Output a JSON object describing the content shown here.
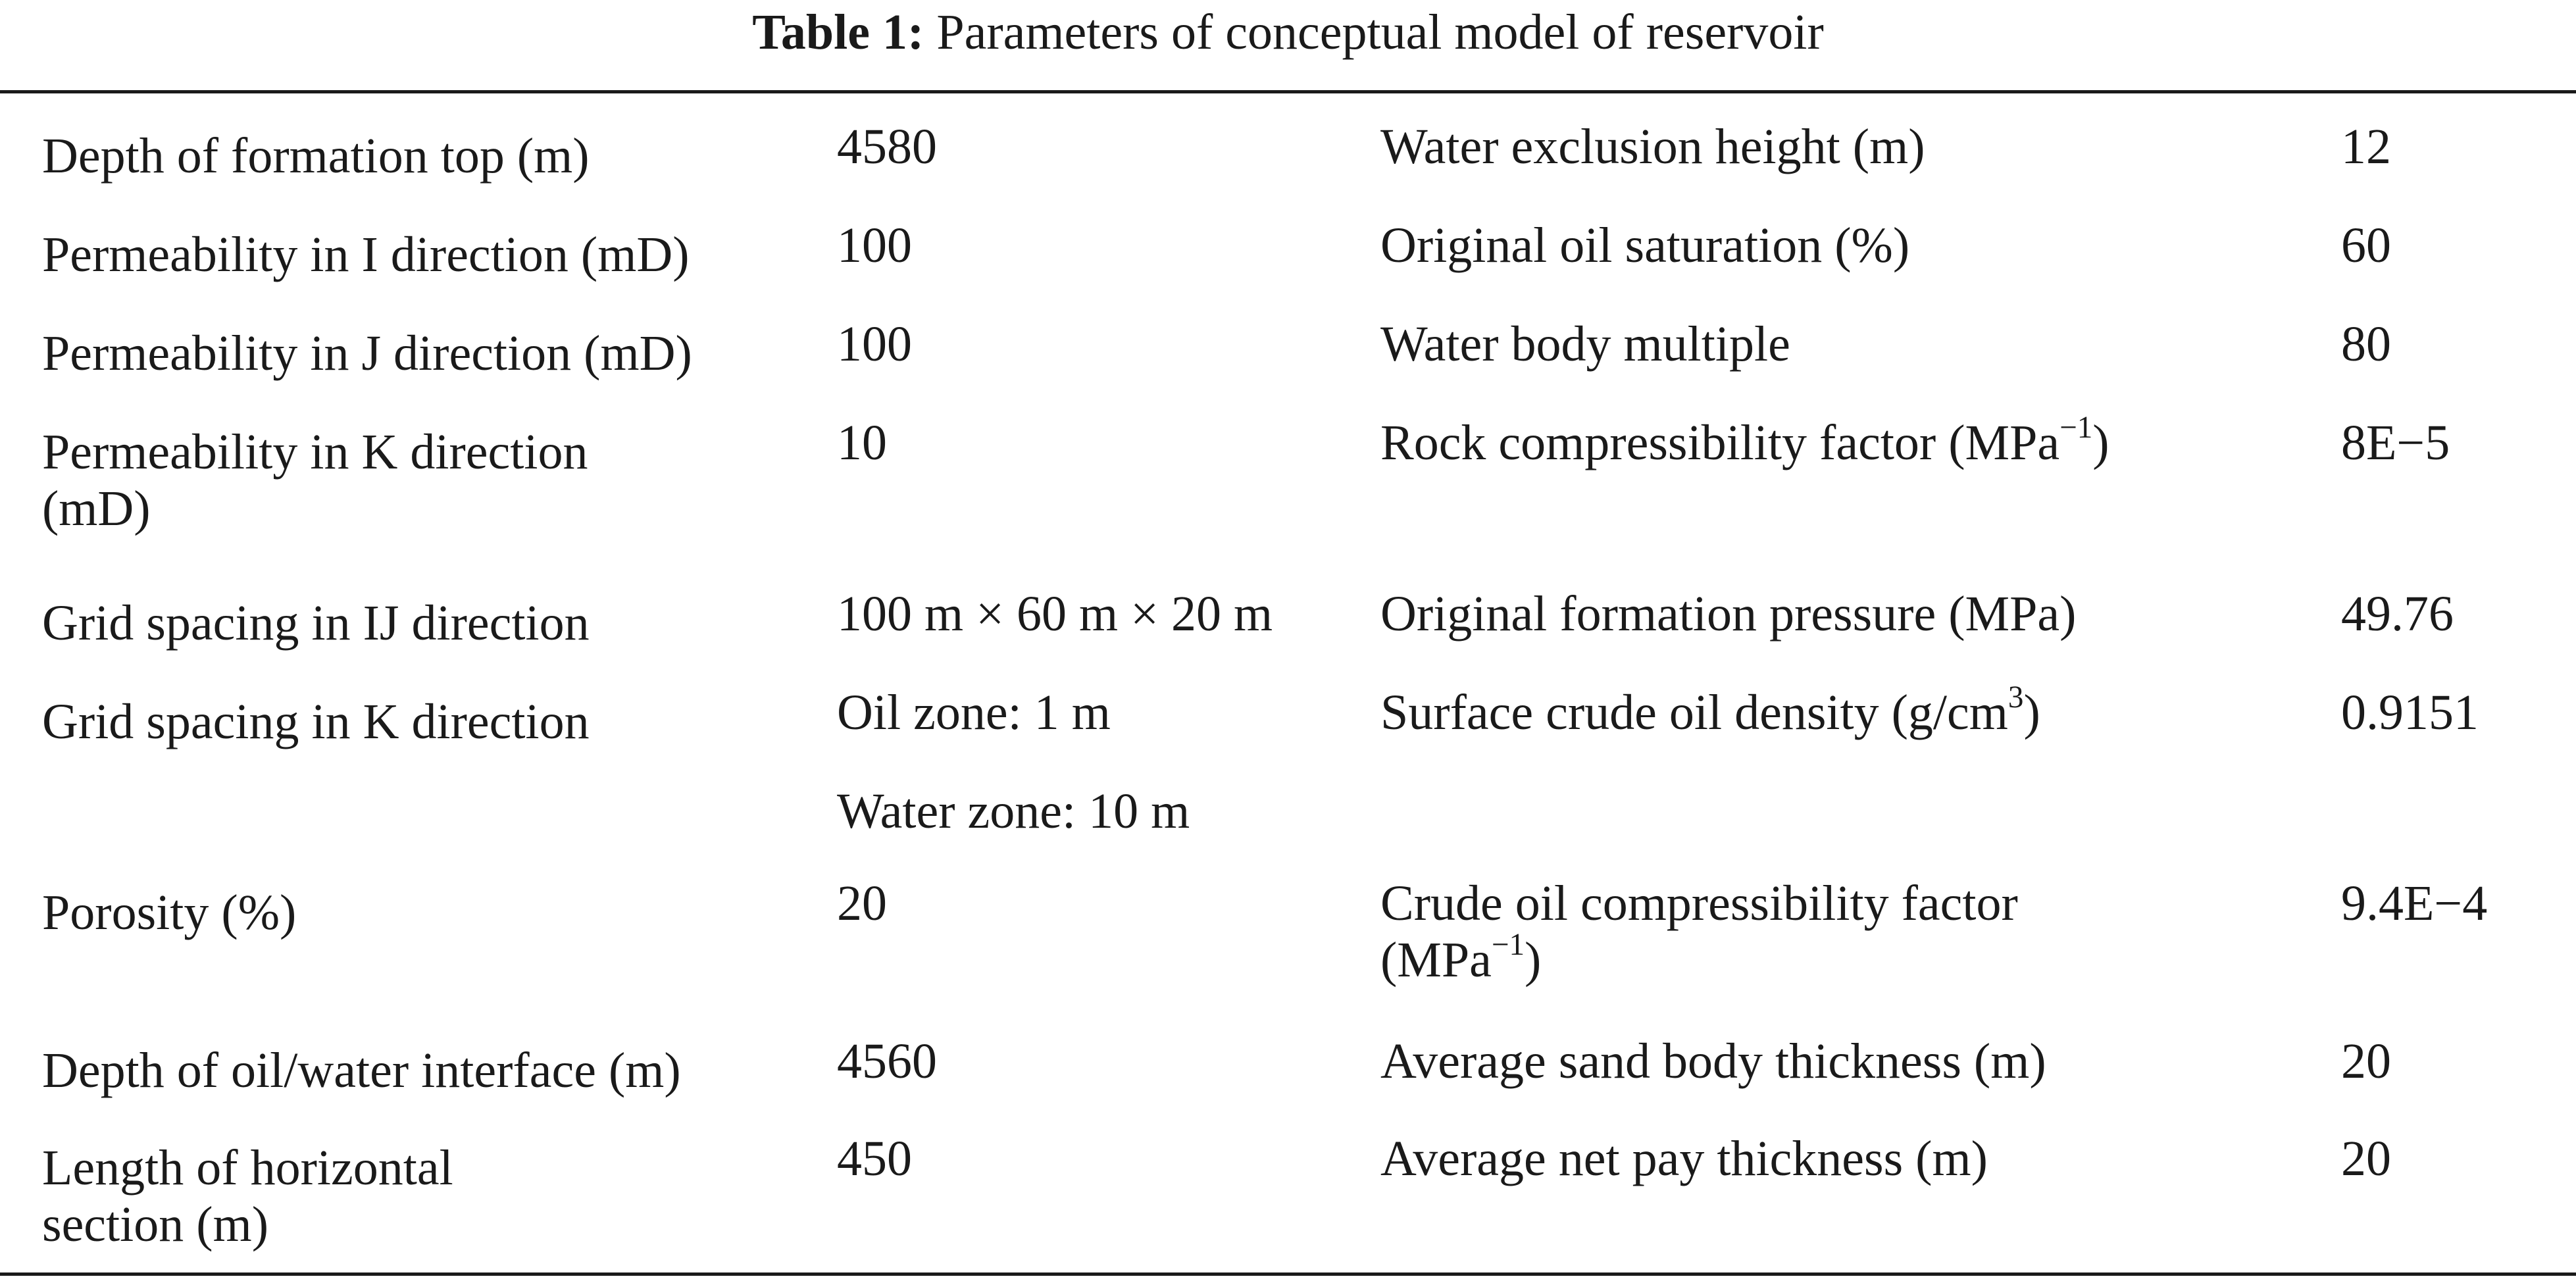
{
  "caption": {
    "label": "Table 1:",
    "title": "Parameters of conceptual model of reservoir"
  },
  "rows": [
    {
      "c1": [
        "Depth of formation top (m)"
      ],
      "c2": [
        "4580"
      ],
      "c3": [
        "Water exclusion height (m)"
      ],
      "c4": [
        "12"
      ]
    },
    {
      "c1": [
        "Permeability in I direction (mD)"
      ],
      "c2": [
        "100"
      ],
      "c3": [
        "Original oil saturation (%)"
      ],
      "c4": [
        "60"
      ]
    },
    {
      "c1": [
        "Permeability in J direction (mD)"
      ],
      "c2": [
        "100"
      ],
      "c3": [
        "Water body multiple"
      ],
      "c4": [
        "80"
      ]
    },
    {
      "c1": [
        "Permeability in K direction",
        "(mD)"
      ],
      "c2": [
        "10"
      ],
      "c3": [
        "Rock compressibility factor (MPa",
        "−1",
        ")"
      ],
      "c4": [
        "8E−5"
      ]
    },
    {
      "c1": [
        "Grid spacing in IJ direction"
      ],
      "c2": [
        "100 m × 60 m × 20 m"
      ],
      "c3": [
        "Original formation pressure (MPa)"
      ],
      "c4": [
        "49.76"
      ]
    },
    {
      "c1": [
        "Grid spacing in K direction"
      ],
      "c2": [
        "Oil zone: 1 m"
      ],
      "c3": [
        "Surface crude oil density (g/cm",
        "3",
        ")"
      ],
      "c4": [
        "0.9151"
      ]
    },
    {
      "c1": [
        ""
      ],
      "c2": [
        "Water zone: 10 m"
      ],
      "c3": [
        ""
      ],
      "c4": [
        ""
      ]
    },
    {
      "c1": [
        "Porosity (%)"
      ],
      "c2": [
        "20"
      ],
      "c3": [
        "Crude oil compressibility factor",
        "(MPa",
        "−1",
        ")"
      ],
      "c4": [
        "9.4E−4"
      ]
    },
    {
      "c1": [
        "Depth of oil/water interface (m)"
      ],
      "c2": [
        "4560"
      ],
      "c3": [
        "Average sand body thickness (m)"
      ],
      "c4": [
        "20"
      ]
    },
    {
      "c1": [
        "Length of horizontal",
        "section (m)"
      ],
      "c2": [
        "450"
      ],
      "c3": [
        "Average net pay thickness (m)"
      ],
      "c4": [
        "20"
      ]
    }
  ]
}
